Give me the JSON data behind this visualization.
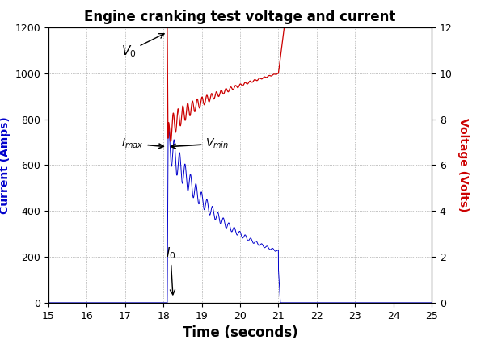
{
  "title": "Engine cranking test voltage and current",
  "xlabel": "Time (seconds)",
  "ylabel_left": "Current (Amps)",
  "ylabel_right": "Voltage (Volts)",
  "xlim": [
    15,
    25
  ],
  "ylim_left": [
    0,
    1200
  ],
  "ylim_right": [
    0,
    12
  ],
  "xticks": [
    15,
    16,
    17,
    18,
    19,
    20,
    21,
    22,
    23,
    24,
    25
  ],
  "yticks_left": [
    0,
    200,
    400,
    600,
    800,
    1000,
    1200
  ],
  "yticks_right": [
    0,
    2,
    4,
    6,
    8,
    10,
    12
  ],
  "background_color": "#ffffff",
  "grid_color": "#555555",
  "voltage_color": "#cc0000",
  "current_color": "#0000cc",
  "crank_start": 18.1,
  "crank_end": 21.0,
  "figsize": [
    6.0,
    4.26
  ],
  "dpi": 100
}
